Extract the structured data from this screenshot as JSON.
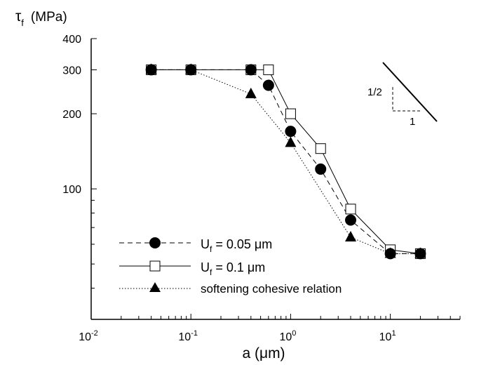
{
  "chart_data": {
    "type": "line",
    "x_scale": "log",
    "y_scale": "log",
    "xlim": [
      0.01,
      50
    ],
    "ylim": [
      30,
      400
    ],
    "y_axis_label": {
      "symbol": "τ",
      "subscript": "f",
      "unit": "(MPa)"
    },
    "x_axis_label": {
      "prefix": "a (",
      "mu": "μ",
      "suffix": "m)"
    },
    "x_ticks": [
      {
        "value": 0.01,
        "base": "10",
        "exp": "-2"
      },
      {
        "value": 0.1,
        "base": "10",
        "exp": "-1"
      },
      {
        "value": 1,
        "base": "10",
        "exp": "0"
      },
      {
        "value": 10,
        "base": "10",
        "exp": "1"
      }
    ],
    "y_ticks": [
      {
        "value": 100,
        "label": "100"
      },
      {
        "value": 200,
        "label": "200"
      },
      {
        "value": 300,
        "label": "300"
      },
      {
        "value": 400,
        "label": "400"
      }
    ],
    "series": [
      {
        "name": "U_f = 0.05 μm",
        "legend": {
          "symbol": "U",
          "sub": "f",
          "rest": " = 0.05 ",
          "mu": "μ",
          "unit": "m"
        },
        "marker": "filled-circle",
        "linestyle": "dashed",
        "x": [
          0.04,
          0.1,
          0.4,
          0.6,
          1,
          2,
          4,
          10,
          20
        ],
        "y": [
          300,
          300,
          300,
          260,
          170,
          120,
          75,
          55,
          55
        ]
      },
      {
        "name": "U_f = 0.1 μm",
        "legend": {
          "symbol": "U",
          "sub": "f",
          "rest": " = 0.1 ",
          "mu": "μ",
          "unit": "m"
        },
        "marker": "open-square",
        "linestyle": "solid",
        "x": [
          0.04,
          0.1,
          0.4,
          0.6,
          1,
          2,
          4,
          10,
          20
        ],
        "y": [
          300,
          300,
          300,
          300,
          200,
          145,
          83,
          57,
          55
        ]
      },
      {
        "name": "softening cohesive relation",
        "legend": {
          "text": "softening cohesive relation"
        },
        "marker": "filled-triangle",
        "linestyle": "dotted",
        "x": [
          0.04,
          0.1,
          0.4,
          1,
          4,
          10,
          20
        ],
        "y": [
          300,
          300,
          240,
          153,
          64,
          55,
          55
        ]
      }
    ],
    "slope_indicator": {
      "rise_label": "1/2",
      "run_label": "1"
    }
  }
}
